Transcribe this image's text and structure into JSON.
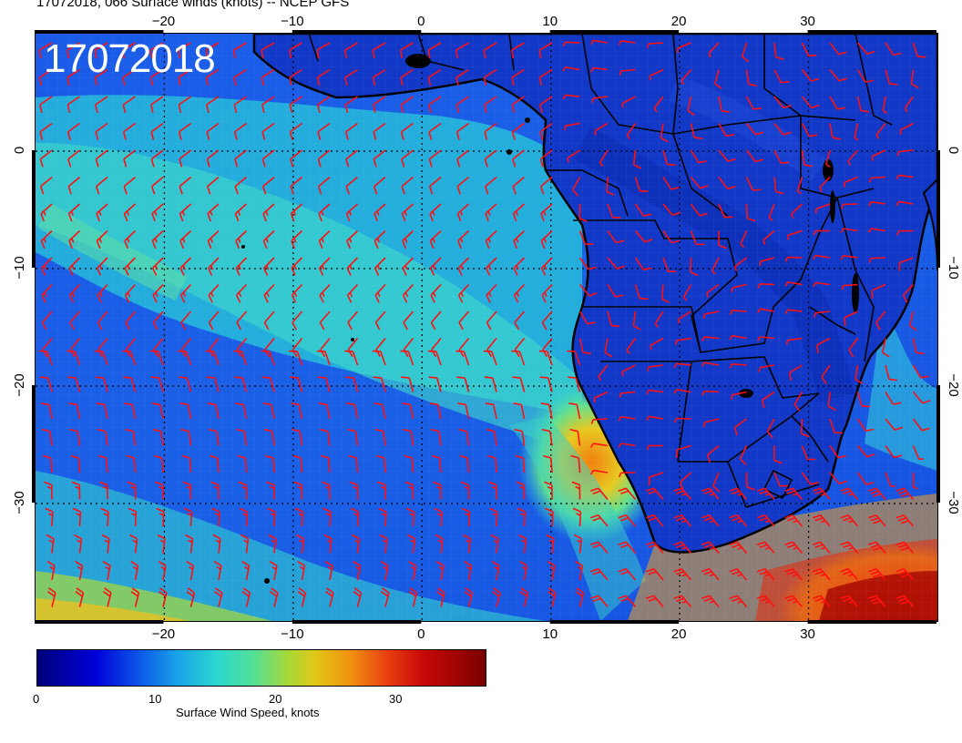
{
  "title": "17072018, 066 Surface winds (knots) -- NCEP GFS",
  "date_label": "17072018",
  "map": {
    "region": "South Atlantic / Southern Africa",
    "lon_range": [
      -30,
      40
    ],
    "lat_range": [
      -40,
      10
    ],
    "lon_ticks": [
      -20,
      -10,
      0,
      10,
      20,
      30
    ],
    "lat_ticks": [
      0,
      -10,
      -20,
      -30
    ],
    "lon_tick_labels": [
      "−20",
      "−10",
      "0",
      "10",
      "20",
      "30"
    ],
    "lat_tick_labels": [
      "0",
      "−10",
      "−20",
      "−30"
    ],
    "wind_barb_color": "#ff0000",
    "land_outline_color": "#000000"
  },
  "colorbar": {
    "title": "Surface Wind Speed, knots",
    "ticks": [
      "0",
      "10",
      "20",
      "30"
    ],
    "tick_values": [
      0,
      10,
      20,
      30
    ],
    "range": [
      0,
      37
    ],
    "colormap": [
      "#00007a",
      "#0000d8",
      "#0b50e8",
      "#18a0e8",
      "#2ad8d0",
      "#50e098",
      "#a8d838",
      "#e0c818",
      "#f29010",
      "#e84010",
      "#c80808",
      "#7a0000"
    ]
  }
}
